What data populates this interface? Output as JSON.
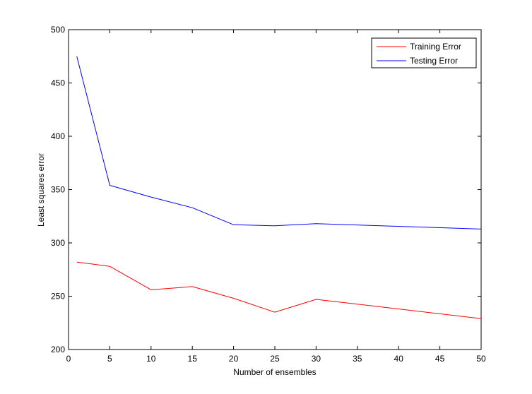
{
  "chart_data": {
    "type": "line",
    "title": "",
    "xlabel": "Number of ensembles",
    "ylabel": "Least squares error",
    "xlim": [
      0,
      50
    ],
    "ylim": [
      200,
      500
    ],
    "xticks": [
      0,
      5,
      10,
      15,
      20,
      25,
      30,
      35,
      40,
      45,
      50
    ],
    "yticks": [
      200,
      250,
      300,
      350,
      400,
      450,
      500
    ],
    "grid": false,
    "legend_position": "top-right",
    "series": [
      {
        "name": "Training Error",
        "color": "#ff0000",
        "x": [
          1,
          5,
          10,
          15,
          20,
          25,
          30,
          50
        ],
        "y": [
          282,
          278,
          256,
          259,
          248,
          235,
          247,
          229
        ]
      },
      {
        "name": "Testing Error",
        "color": "#0000ff",
        "x": [
          1,
          5,
          10,
          15,
          20,
          25,
          30,
          50
        ],
        "y": [
          475,
          354,
          343,
          333,
          317,
          316,
          318,
          313
        ]
      }
    ]
  }
}
